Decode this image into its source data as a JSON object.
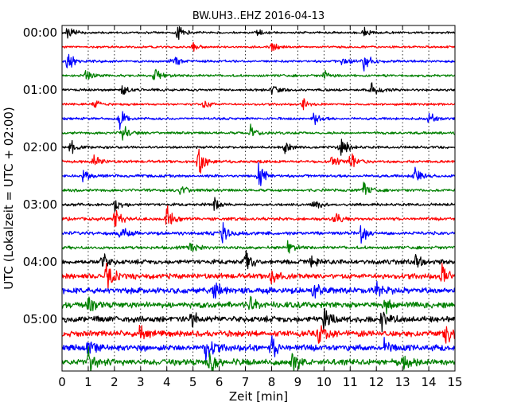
{
  "chart_data": {
    "type": "line",
    "title": "BW.UH3..EHZ 2016-04-13",
    "xlabel": "Zeit  [min]",
    "ylabel": "UTC (Lokalzeit = UTC + 02:00)",
    "xlim": [
      0,
      15
    ],
    "x_ticks": [
      0,
      1,
      2,
      3,
      4,
      5,
      6,
      7,
      8,
      9,
      10,
      11,
      12,
      13,
      14,
      15
    ],
    "x_tick_labels": [
      "0",
      "1",
      "2",
      "3",
      "4",
      "5",
      "6",
      "7",
      "8",
      "9",
      "10",
      "11",
      "12",
      "13",
      "14",
      "15"
    ],
    "y_ticks": [
      {
        "label": "00:00",
        "row": 0
      },
      {
        "label": "01:00",
        "row": 4
      },
      {
        "label": "02:00",
        "row": 8
      },
      {
        "label": "03:00",
        "row": 12
      },
      {
        "label": "04:00",
        "row": 16
      },
      {
        "label": "05:00",
        "row": 20
      }
    ],
    "grid": {
      "x": true,
      "y": false
    },
    "colors": [
      "#000000",
      "#ff0000",
      "#0000ff",
      "#008000"
    ],
    "traces": [
      {
        "start": "00:00",
        "amplitude": 0.35,
        "events": [
          [
            0.2,
            1.0
          ],
          [
            4.4,
            1.0
          ],
          [
            7.4,
            0.7
          ],
          [
            11.5,
            0.7
          ]
        ]
      },
      {
        "start": "00:15",
        "amplitude": 0.35,
        "events": [
          [
            5.0,
            0.6
          ],
          [
            8.0,
            0.5
          ]
        ]
      },
      {
        "start": "00:30",
        "amplitude": 0.4,
        "events": [
          [
            0.2,
            1.3
          ],
          [
            4.2,
            0.9
          ],
          [
            10.6,
            1.1
          ],
          [
            11.5,
            1.6
          ]
        ]
      },
      {
        "start": "00:45",
        "amplitude": 0.4,
        "events": [
          [
            0.9,
            0.8
          ],
          [
            3.5,
            1.0
          ],
          [
            10.0,
            0.6
          ]
        ]
      },
      {
        "start": "01:00",
        "amplitude": 0.4,
        "events": [
          [
            2.3,
            0.8
          ],
          [
            8.0,
            0.6
          ],
          [
            11.8,
            0.9
          ]
        ]
      },
      {
        "start": "01:15",
        "amplitude": 0.35,
        "events": [
          [
            1.2,
            0.7
          ],
          [
            5.4,
            0.6
          ],
          [
            9.2,
            0.7
          ]
        ]
      },
      {
        "start": "01:30",
        "amplitude": 0.4,
        "events": [
          [
            2.2,
            1.4
          ],
          [
            9.6,
            0.9
          ],
          [
            14.0,
            0.8
          ]
        ]
      },
      {
        "start": "01:45",
        "amplitude": 0.4,
        "events": [
          [
            2.3,
            1.2
          ],
          [
            7.2,
            0.8
          ],
          [
            15.0,
            1.0
          ]
        ]
      },
      {
        "start": "02:00",
        "amplitude": 0.4,
        "events": [
          [
            0.3,
            0.9
          ],
          [
            8.5,
            0.7
          ],
          [
            10.6,
            1.8
          ]
        ]
      },
      {
        "start": "02:15",
        "amplitude": 0.45,
        "events": [
          [
            1.2,
            0.9
          ],
          [
            5.2,
            1.8
          ],
          [
            10.3,
            1.0
          ],
          [
            11.0,
            1.1
          ]
        ]
      },
      {
        "start": "02:30",
        "amplitude": 0.45,
        "events": [
          [
            0.8,
            0.8
          ],
          [
            7.5,
            1.6
          ],
          [
            13.4,
            1.3
          ]
        ]
      },
      {
        "start": "02:45",
        "amplitude": 0.45,
        "events": [
          [
            4.5,
            0.8
          ],
          [
            11.5,
            0.9
          ]
        ]
      },
      {
        "start": "03:00",
        "amplitude": 0.45,
        "events": [
          [
            2.0,
            0.9
          ],
          [
            5.8,
            0.7
          ],
          [
            9.6,
            0.7
          ]
        ]
      },
      {
        "start": "03:15",
        "amplitude": 0.5,
        "events": [
          [
            2.0,
            1.5
          ],
          [
            4.0,
            1.6
          ],
          [
            10.4,
            0.9
          ]
        ]
      },
      {
        "start": "03:30",
        "amplitude": 0.55,
        "events": [
          [
            2.2,
            1.1
          ],
          [
            6.1,
            1.2
          ],
          [
            11.4,
            1.2
          ]
        ]
      },
      {
        "start": "03:45",
        "amplitude": 0.5,
        "events": [
          [
            4.9,
            0.9
          ],
          [
            8.6,
            0.7
          ]
        ]
      },
      {
        "start": "04:00",
        "amplitude": 0.75,
        "events": [
          [
            1.5,
            1.2
          ],
          [
            7.0,
            1.5
          ],
          [
            9.5,
            1.0
          ],
          [
            13.5,
            0.8
          ]
        ]
      },
      {
        "start": "04:15",
        "amplitude": 0.85,
        "events": [
          [
            1.7,
            1.8
          ],
          [
            7.9,
            1.3
          ],
          [
            14.5,
            1.3
          ]
        ]
      },
      {
        "start": "04:30",
        "amplitude": 0.95,
        "events": [
          [
            5.8,
            1.3
          ],
          [
            9.6,
            1.2
          ],
          [
            12.0,
            1.2
          ]
        ]
      },
      {
        "start": "04:45",
        "amplitude": 0.95,
        "events": [
          [
            1.0,
            1.1
          ],
          [
            7.2,
            1.0
          ],
          [
            12.3,
            1.0
          ]
        ]
      },
      {
        "start": "05:00",
        "amplitude": 1.0,
        "events": [
          [
            4.9,
            1.2
          ],
          [
            10.0,
            1.4
          ],
          [
            12.2,
            1.6
          ]
        ]
      },
      {
        "start": "05:15",
        "amplitude": 0.95,
        "events": [
          [
            2.9,
            1.0
          ],
          [
            9.8,
            1.2
          ],
          [
            14.6,
            1.3
          ]
        ]
      },
      {
        "start": "05:30",
        "amplitude": 1.0,
        "events": [
          [
            1.0,
            1.1
          ],
          [
            5.5,
            2.0
          ],
          [
            8.0,
            1.4
          ],
          [
            12.3,
            1.1
          ]
        ]
      },
      {
        "start": "05:45",
        "amplitude": 1.0,
        "events": [
          [
            1.0,
            1.6
          ],
          [
            5.6,
            1.8
          ],
          [
            8.8,
            1.2
          ],
          [
            13.0,
            1.0
          ]
        ]
      }
    ]
  }
}
